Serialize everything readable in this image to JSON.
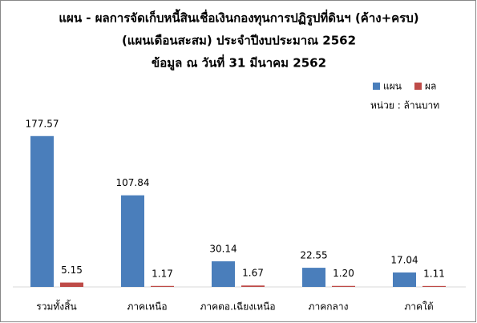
{
  "chart_data": {
    "type": "bar",
    "title": [
      "แผน - ผลการจัดเก็บหนี้สินเชื่อเงินกองทุนการปฏิรูปที่ดินฯ (ค้าง+ครบ)",
      "(แผนเดือนสะสม)  ประจำปีงบประมาณ 2562",
      "ข้อมูล ณ วันที่ 31 มีนาคม 2562"
    ],
    "unit_note": "หน่วย : ล้านบาท",
    "categories": [
      "รวมทั้งสิ้น",
      "ภาคเหนือ",
      "ภาคตอ.เฉียงเหนือ",
      "ภาคกลาง",
      "ภาคใต้"
    ],
    "series": [
      {
        "name": "แผน",
        "color": "#4a7ebb",
        "values": [
          177.57,
          107.84,
          30.14,
          22.55,
          17.04
        ]
      },
      {
        "name": "ผล",
        "color": "#be4b48",
        "values": [
          5.15,
          1.17,
          1.67,
          1.2,
          1.11
        ],
        "value_labels": [
          "5.15",
          "1.17",
          "1.67",
          "1.20",
          "1.11"
        ]
      }
    ],
    "ylim": [
      0,
      200
    ],
    "legend": "top-right"
  }
}
